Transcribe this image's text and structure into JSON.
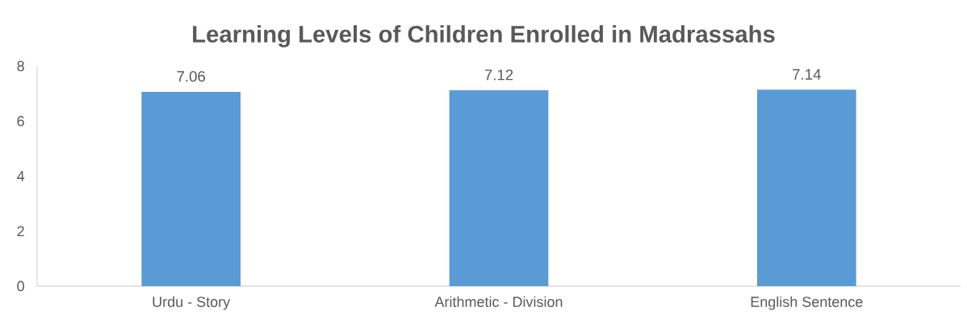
{
  "chart_data": {
    "type": "bar",
    "title": "Learning Levels of Children Enrolled in Madrassahs",
    "categories": [
      "Urdu - Story",
      "Arithmetic - Division",
      "English Sentence"
    ],
    "values": [
      7.06,
      7.12,
      7.14
    ],
    "color": "#5b9bd5",
    "ylim": [
      0,
      8
    ],
    "yticks": [
      0,
      2,
      4,
      6,
      8
    ],
    "grid": false,
    "data_labels": true
  }
}
